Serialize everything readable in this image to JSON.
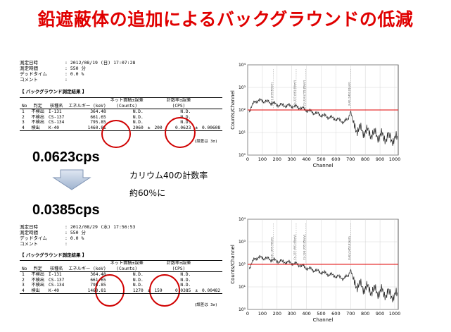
{
  "title": "鉛遮蔽体の追加によるバックグラウンドの低減",
  "report1": {
    "meta": [
      {
        "label": "測定日時",
        "value": ": 2012/08/19 (日) 17:07:28"
      },
      {
        "label": "測定時間",
        "value": ": 550 分"
      },
      {
        "label": "デッドタイム",
        "value": ": 0.0 %"
      },
      {
        "label": "コメント",
        "value": ":"
      }
    ],
    "section_title": "【 バックグラウンド測定結果 】",
    "headers_top": [
      "",
      "",
      "",
      "",
      "ネット面積±誤差",
      "",
      "",
      "計数率±誤差",
      "",
      ""
    ],
    "headers_bottom": [
      "No",
      "判定",
      "核種名",
      "エネルギー\n(keV)",
      "(Counts)",
      "",
      "",
      "(CPS)",
      "",
      ""
    ],
    "rows": [
      [
        "1",
        "不検出",
        "I-131",
        "364.48",
        "N.D.",
        "",
        "",
        "N.D.",
        "",
        ""
      ],
      [
        "2",
        "不検出",
        "CS-137",
        "661.65",
        "N.D.",
        "",
        "",
        "N.D.",
        "",
        ""
      ],
      [
        "3",
        "不検出",
        "CS-134",
        "795.85",
        "N.D.",
        "",
        "",
        "N.D.",
        "",
        ""
      ],
      [
        "4",
        "検出",
        "K-40",
        "1460.81",
        "2060",
        "±",
        "200",
        "0.0623",
        "±",
        "0.00608"
      ]
    ],
    "note": "(誤差は 3σ)"
  },
  "report2": {
    "meta": [
      {
        "label": "測定日時",
        "value": ": 2012/08/29 (水) 17:56:53"
      },
      {
        "label": "測定時間",
        "value": ": 550 分"
      },
      {
        "label": "デッドタイム",
        "value": ": 0.0 %"
      },
      {
        "label": "コメント",
        "value": ":"
      }
    ],
    "section_title": "【 バックグラウンド測定結果 】",
    "headers_top": [
      "",
      "",
      "",
      "",
      "ネット面積±誤差",
      "",
      "",
      "計数率±誤差",
      "",
      ""
    ],
    "headers_bottom": [
      "No",
      "判定",
      "核種名",
      "エネルギー\n(keV)",
      "(Counts)",
      "",
      "",
      "(CPS)",
      "",
      ""
    ],
    "rows": [
      [
        "1",
        "不検出",
        "I-131",
        "364.48",
        "N.D.",
        "",
        "",
        "N.D.",
        "",
        ""
      ],
      [
        "2",
        "不検出",
        "CS-137",
        "661.65",
        "N.D.",
        "",
        "",
        "N.D.",
        "",
        ""
      ],
      [
        "3",
        "不検出",
        "CS-134",
        "795.85",
        "N.D.",
        "",
        "",
        "N.D.",
        "",
        ""
      ],
      [
        "4",
        "検出",
        "K-40",
        "1460.81",
        "1270",
        "±",
        "159",
        "0.0385",
        "±",
        "0.00482"
      ]
    ],
    "note": "(誤差は 3σ)"
  },
  "rate_before": "0.0623cps",
  "rate_after": "0.0385cps",
  "caption_line1": "カリウム40の計数率",
  "caption_line2": "約60％に",
  "spectra": {
    "ylabel": "Counts/Channel",
    "xlabel": "Channel",
    "xticks": [
      "0",
      "100",
      "200",
      "300",
      "400",
      "500",
      "600",
      "700",
      "800",
      "900",
      "1000"
    ],
    "yticks": [
      "10⁰",
      "10¹",
      "10²",
      "10³",
      "10⁴"
    ],
    "peak_labels": [
      "I-131 (364.48keV)",
      "Cs-137 (661.65keV)",
      "Cs-134 (795.85keV)",
      "K-40 (1460.81keV)"
    ],
    "reference_line_color": "#e00000",
    "accent_color": "#d00000"
  },
  "chart_data": [
    {
      "type": "line",
      "xlabel": "Channel",
      "ylabel": "Counts/Channel",
      "xlim": [
        0,
        1024
      ],
      "ylim": [
        1,
        10000
      ],
      "yscale": "log",
      "reference_y": 100,
      "x": [
        10,
        50,
        100,
        150,
        200,
        250,
        300,
        350,
        400,
        450,
        500,
        550,
        600,
        650,
        680,
        700,
        720,
        750,
        800,
        850,
        900,
        950,
        1000,
        1020
      ],
      "y": [
        90,
        250,
        260,
        220,
        170,
        160,
        150,
        130,
        100,
        75,
        60,
        48,
        40,
        30,
        35,
        100,
        20,
        14,
        11,
        9,
        7,
        6,
        5,
        5
      ]
    },
    {
      "type": "line",
      "xlabel": "Channel",
      "ylabel": "Counts/Channel",
      "xlim": [
        0,
        1024
      ],
      "ylim": [
        1,
        10000
      ],
      "yscale": "log",
      "reference_y": 100,
      "x": [
        10,
        50,
        100,
        150,
        200,
        250,
        300,
        350,
        400,
        450,
        500,
        550,
        600,
        650,
        680,
        700,
        720,
        750,
        800,
        850,
        900,
        950,
        1000,
        1020
      ],
      "y": [
        70,
        190,
        200,
        170,
        140,
        130,
        115,
        95,
        70,
        55,
        45,
        36,
        30,
        24,
        28,
        65,
        16,
        12,
        9,
        7,
        6,
        5,
        4,
        4
      ]
    }
  ]
}
